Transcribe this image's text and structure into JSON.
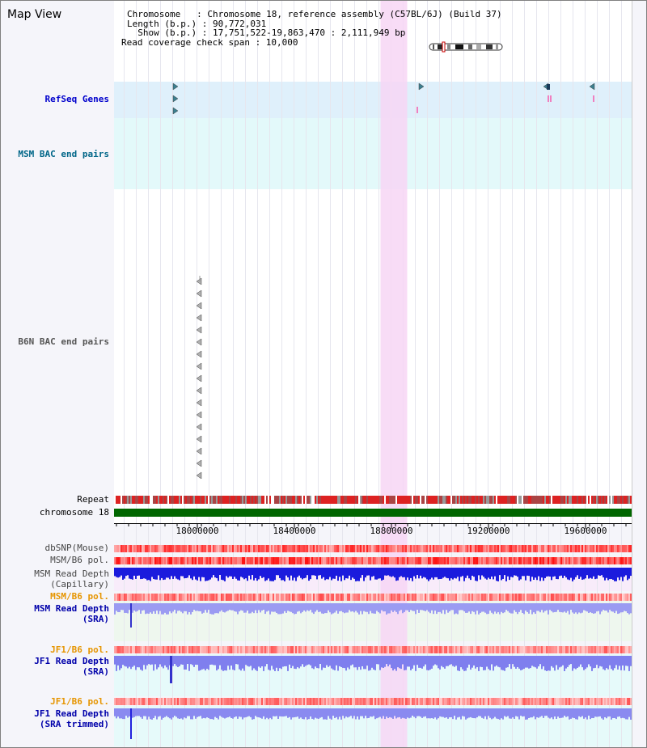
{
  "title": "Map View",
  "info": {
    "chromosome_line": "Chromosome   : Chromosome 18, reference assembly (C57BL/6J) (Build 37)",
    "length_line": "Length (b.p.) : 90,772,031",
    "show_line": "  Show (b.p.) : 17,751,522-19,863,470 : 2,111,949 bp",
    "coverage_line": "Read coverage check span : 10,000"
  },
  "tracks": {
    "refseq": "RefSeq Genes",
    "msm_bac": "MSM BAC end pairs",
    "b6n_bac": "B6N BAC end pairs",
    "repeat": "Repeat",
    "chromosome": "chromosome 18",
    "dbsnp": "dbSNP(Mouse)",
    "msm_b6_pol": "MSM/B6 pol.",
    "msm_depth_cap_1": "MSM Read Depth",
    "msm_depth_cap_2": "(Capillary)",
    "msm_b6_pol_2": "MSM/B6 pol.",
    "msm_depth_sra_1": "MSM Read Depth",
    "msm_depth_sra_2": "(SRA)",
    "jf1_pol_1": "JF1/B6 pol.",
    "jf1_depth_1": "JF1 Read Depth",
    "jf1_depth_1b": "(SRA)",
    "jf1_pol_2": "JF1/B6 pol.",
    "jf1_depth_2": "JF1 Read Depth",
    "jf1_depth_2b": "(SRA trimmed)"
  },
  "axis": {
    "ticks": [
      {
        "pos": 18000000,
        "label": "18000000"
      },
      {
        "pos": 18400000,
        "label": "18400000"
      },
      {
        "pos": 18800000,
        "label": "18800000"
      },
      {
        "pos": 19200000,
        "label": "19200000"
      },
      {
        "pos": 19600000,
        "label": "19600000"
      }
    ],
    "range": [
      17751522,
      19863470
    ]
  },
  "highlight": {
    "start": 18755000,
    "end": 18865000
  },
  "colors": {
    "refseq_label": "#0000cc",
    "msm_label": "#006688",
    "b6n_label": "#555555",
    "pol_orange": "#e69500",
    "depth_blue": "#0000aa",
    "chromosome_green": "#006600",
    "highlight": "#f7d6f4",
    "depth_cap": "#1b1bdd",
    "depth_sra": "#9a9af0"
  },
  "icons": [
    "chromosome-ideogram-icon",
    "gene-arrow-icon",
    "clone-end-arrow-icon"
  ]
}
